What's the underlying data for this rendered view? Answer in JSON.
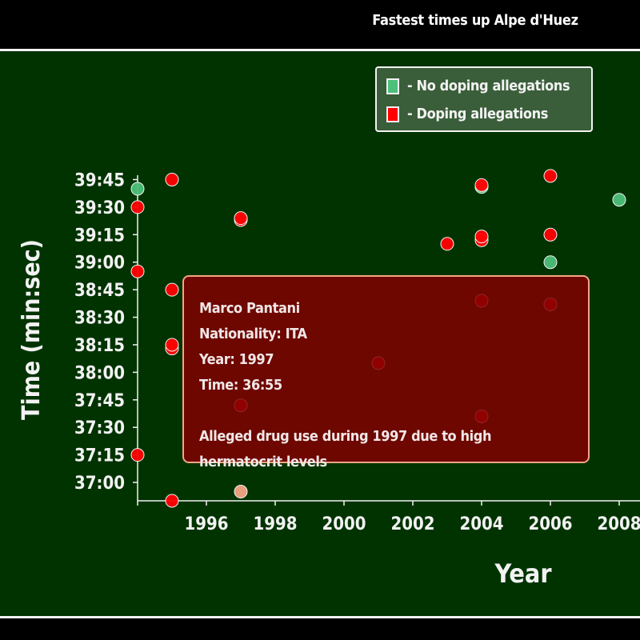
{
  "title": "Fastest times up Alpe d'Huez",
  "legend": {
    "no_doping_label": "- No doping allegations",
    "doping_label": "- Doping allegations"
  },
  "colors": {
    "background": "#003300",
    "no_doping": "#4cc07a",
    "doping": "#ff0000",
    "highlight": "#f4a582",
    "tooltip_bg": "#800000"
  },
  "tooltip": {
    "name": "Marco Pantani",
    "nationality": "Nationality: ITA",
    "year": "Year: 1997",
    "time": "Time: 36:55",
    "note": "Alleged drug use during 1997 due to high hermatocrit levels"
  },
  "chart_data": {
    "type": "scatter",
    "title": "Fastest times up Alpe d'Huez",
    "xlabel": "Year",
    "ylabel": "Time (min:sec)",
    "x_ticks": [
      "1996",
      "1998",
      "2000",
      "2002",
      "2004",
      "2006",
      "2008"
    ],
    "y_ticks": [
      "39:45",
      "39:30",
      "39:15",
      "39:00",
      "38:45",
      "38:30",
      "38:15",
      "38:00",
      "37:45",
      "37:30",
      "37:15",
      "37:00"
    ],
    "xlim": [
      1994,
      2008
    ],
    "ylim": [
      "39:50",
      "36:50"
    ],
    "y_inverted": true,
    "grid": false,
    "legend_position": "top-right",
    "points": [
      {
        "year": 1994,
        "time": "39:40",
        "doping": false
      },
      {
        "year": 1994,
        "time": "39:30",
        "doping": true
      },
      {
        "year": 1994,
        "time": "38:55",
        "doping": true
      },
      {
        "year": 1994,
        "time": "37:15",
        "doping": true
      },
      {
        "year": 1995,
        "time": "39:45",
        "doping": true
      },
      {
        "year": 1995,
        "time": "38:45",
        "doping": true
      },
      {
        "year": 1995,
        "time": "38:13",
        "doping": true
      },
      {
        "year": 1995,
        "time": "38:15",
        "doping": true
      },
      {
        "year": 1995,
        "time": "36:50",
        "doping": true
      },
      {
        "year": 1997,
        "time": "39:23",
        "doping": true
      },
      {
        "year": 1997,
        "time": "39:24",
        "doping": true
      },
      {
        "year": 1997,
        "time": "37:42",
        "doping": true
      },
      {
        "year": 1997,
        "time": "36:55",
        "doping": true,
        "highlight": true
      },
      {
        "year": 2001,
        "time": "38:05",
        "doping": true
      },
      {
        "year": 2003,
        "time": "39:10",
        "doping": true
      },
      {
        "year": 2004,
        "time": "39:41",
        "doping": false
      },
      {
        "year": 2004,
        "time": "39:42",
        "doping": true
      },
      {
        "year": 2004,
        "time": "39:12",
        "doping": true
      },
      {
        "year": 2004,
        "time": "39:14",
        "doping": true
      },
      {
        "year": 2004,
        "time": "38:39",
        "doping": true
      },
      {
        "year": 2004,
        "time": "37:36",
        "doping": true
      },
      {
        "year": 2006,
        "time": "39:47",
        "doping": true
      },
      {
        "year": 2006,
        "time": "39:15",
        "doping": true
      },
      {
        "year": 2006,
        "time": "39:00",
        "doping": false
      },
      {
        "year": 2006,
        "time": "38:37",
        "doping": true
      },
      {
        "year": 2008,
        "time": "39:34",
        "doping": false
      }
    ]
  }
}
